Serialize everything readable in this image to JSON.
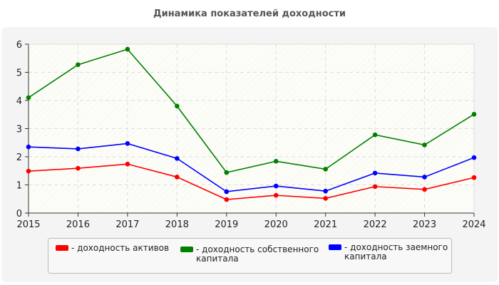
{
  "chart_data": {
    "type": "line",
    "title": "Динамика показателей доходности",
    "x": [
      2015,
      2016,
      2017,
      2018,
      2019,
      2020,
      2021,
      2022,
      2023,
      2024
    ],
    "ylim": [
      0,
      6
    ],
    "yticks": [
      0,
      1,
      2,
      3,
      4,
      5,
      6
    ],
    "grid": true,
    "legend_position": "bottom",
    "series": [
      {
        "name": "- доходность активов",
        "color": "#ff0000",
        "values": [
          1.49,
          1.59,
          1.74,
          1.28,
          0.48,
          0.63,
          0.52,
          0.94,
          0.84,
          1.26
        ]
      },
      {
        "name": "- доходность собственного капитала",
        "color": "#008000",
        "values": [
          4.1,
          5.27,
          5.82,
          3.8,
          1.44,
          1.84,
          1.56,
          2.78,
          2.42,
          3.51
        ]
      },
      {
        "name": "- доходность заемного капитала",
        "color": "#0000ff",
        "values": [
          2.35,
          2.28,
          2.47,
          1.94,
          0.76,
          0.96,
          0.78,
          1.42,
          1.28,
          1.97
        ]
      }
    ]
  }
}
